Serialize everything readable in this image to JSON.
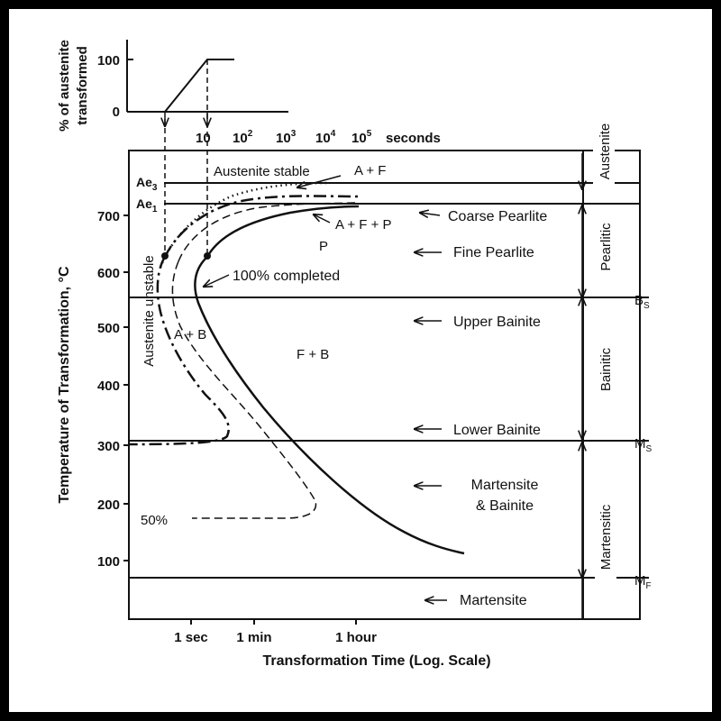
{
  "chart_data": {
    "type": "line",
    "title": "",
    "xlabel": "Transformation Time (Log. Scale)",
    "ylabel": "Temperature of Transformation, °C",
    "ylim": [
      20,
      800
    ],
    "yticks": [
      100,
      200,
      300,
      400,
      500,
      600,
      700
    ],
    "top_axis_label": "seconds",
    "top_ticks": [
      {
        "base": "10",
        "exp": ""
      },
      {
        "base": "10",
        "exp": "2"
      },
      {
        "base": "10",
        "exp": "3"
      },
      {
        "base": "10",
        "exp": "4"
      },
      {
        "base": "10",
        "exp": "5"
      }
    ],
    "bottom_ticks": [
      "1 sec",
      "1 min",
      "1 hour"
    ],
    "inset": {
      "ylabel_line1": "% of austenite",
      "ylabel_line2": "transformed",
      "yticks": [
        "100",
        "0"
      ]
    },
    "temperature_lines": [
      {
        "name": "Ae",
        "sub": "3",
        "temp": 755
      },
      {
        "name": "Ae",
        "sub": "1",
        "temp": 718
      },
      {
        "name": "B",
        "sub": "S",
        "temp": 555
      },
      {
        "name": "M",
        "sub": "S",
        "temp": 305
      },
      {
        "name": "M",
        "sub": "F",
        "temp": 72
      }
    ],
    "regions": [
      {
        "text": "Austenite stable"
      },
      {
        "text": "A + F"
      },
      {
        "text": "A + F + P"
      },
      {
        "text": "P"
      },
      {
        "text": "100% completed"
      },
      {
        "text": "Austenite unstable"
      },
      {
        "text": "A + B"
      },
      {
        "text": "F + B"
      },
      {
        "text": "50%"
      }
    ],
    "microstructures": [
      {
        "text": "Coarse Pearlite"
      },
      {
        "text": "Fine Pearlite"
      },
      {
        "text": "Upper Bainite"
      },
      {
        "text": "Lower Bainite"
      },
      {
        "text": "Martensite"
      },
      {
        "text": "& Bainite"
      },
      {
        "text": "Martensite"
      }
    ],
    "transformation_bands": [
      "Austenite",
      "Pearlitic",
      "Bainitic",
      "Martensitic"
    ]
  }
}
